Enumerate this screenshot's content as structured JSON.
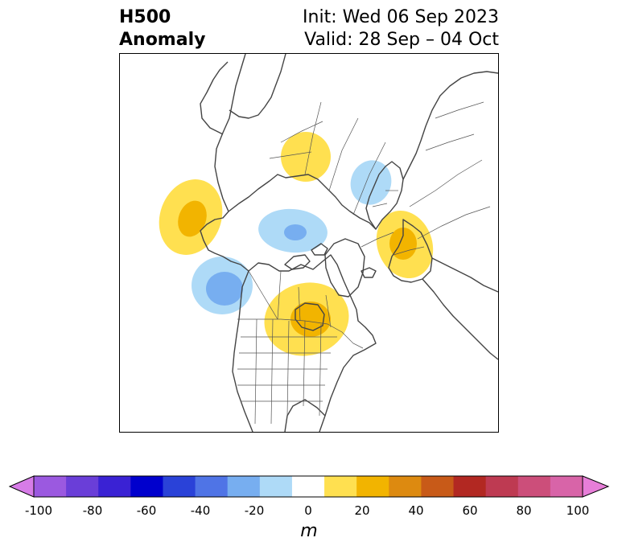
{
  "title": {
    "left_line1": "H500",
    "left_line2": "Anomaly",
    "right_line1": "Init: Wed 06 Sep 2023",
    "right_line2": "Valid: 28 Sep – 04 Oct"
  },
  "colorbar": {
    "units": "m",
    "min": -100,
    "max": 100,
    "ticks": [
      "-100",
      "-80",
      "-60",
      "-40",
      "-20",
      "0",
      "20",
      "40",
      "60",
      "80",
      "100"
    ],
    "colors": [
      "#d77ce8",
      "#9b59e0",
      "#6a3ed8",
      "#3a22d4",
      "#0000cd",
      "#2a42d8",
      "#4f74e6",
      "#77aef0",
      "#aedaf7",
      "#ffffff",
      "#ffe050",
      "#f2b400",
      "#dd8a10",
      "#c85a18",
      "#b22822",
      "#be3a52",
      "#cc4e7a",
      "#d864a8",
      "#e77ed8"
    ]
  },
  "map": {
    "anomalies": [
      {
        "name": "anomaly-pacific-ridge",
        "kind": "positive",
        "levels": [
          10,
          20
        ]
      },
      {
        "name": "anomaly-northwest-trough",
        "kind": "negative",
        "levels": [
          -10,
          -20
        ]
      },
      {
        "name": "anomaly-canada-ridge",
        "kind": "positive",
        "levels": [
          10,
          20
        ]
      },
      {
        "name": "anomaly-arctic-trough",
        "kind": "negative",
        "levels": [
          -10,
          -20
        ]
      },
      {
        "name": "anomaly-siberia-ridge",
        "kind": "positive",
        "levels": [
          10
        ]
      },
      {
        "name": "anomaly-europe-ridge",
        "kind": "positive",
        "levels": [
          10,
          20
        ]
      },
      {
        "name": "anomaly-eurasia-trough",
        "kind": "negative",
        "levels": [
          -10
        ]
      }
    ]
  }
}
